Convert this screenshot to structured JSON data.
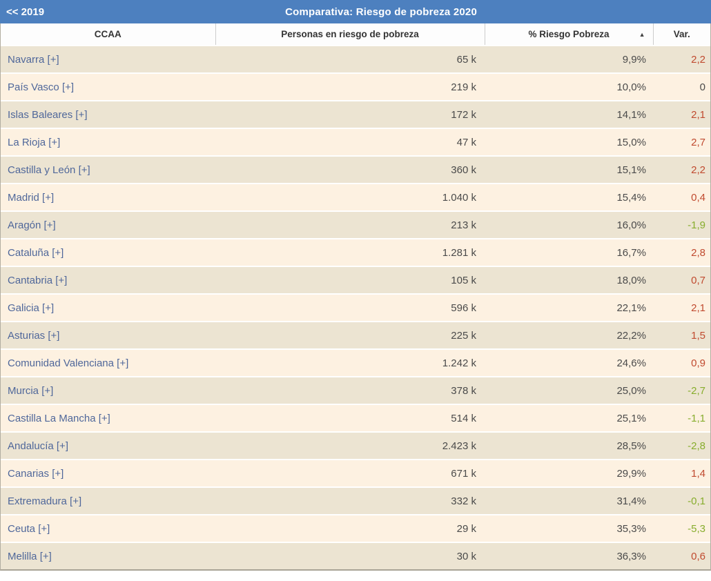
{
  "topbar": {
    "back_label": "<< 2019",
    "title": "Comparativa: Riesgo de pobreza 2020"
  },
  "table": {
    "columns": {
      "ccaa": "CCAA",
      "personas": "Personas en riesgo de pobreza",
      "pct": "% Riesgo Pobreza",
      "var": "Var."
    },
    "sort_icon": "▲",
    "sorted_column": "% Riesgo Pobreza",
    "sort_direction": "ascending",
    "plus_suffix": "[+]",
    "rows": [
      {
        "name": "Navarra",
        "personas": "65 k",
        "pct": "9,9%",
        "var": "2,2",
        "var_state": "up"
      },
      {
        "name": "País Vasco",
        "personas": "219 k",
        "pct": "10,0%",
        "var": "0",
        "var_state": "zero"
      },
      {
        "name": "Islas Baleares",
        "personas": "172 k",
        "pct": "14,1%",
        "var": "2,1",
        "var_state": "up"
      },
      {
        "name": "La Rioja",
        "personas": "47 k",
        "pct": "15,0%",
        "var": "2,7",
        "var_state": "up"
      },
      {
        "name": "Castilla y León",
        "personas": "360 k",
        "pct": "15,1%",
        "var": "2,2",
        "var_state": "up"
      },
      {
        "name": "Madrid",
        "personas": "1.040 k",
        "pct": "15,4%",
        "var": "0,4",
        "var_state": "up"
      },
      {
        "name": "Aragón",
        "personas": "213 k",
        "pct": "16,0%",
        "var": "-1,9",
        "var_state": "down"
      },
      {
        "name": "Cataluña",
        "personas": "1.281 k",
        "pct": "16,7%",
        "var": "2,8",
        "var_state": "up"
      },
      {
        "name": "Cantabria",
        "personas": "105 k",
        "pct": "18,0%",
        "var": "0,7",
        "var_state": "up"
      },
      {
        "name": "Galicia",
        "personas": "596 k",
        "pct": "22,1%",
        "var": "2,1",
        "var_state": "up"
      },
      {
        "name": "Asturias",
        "personas": "225 k",
        "pct": "22,2%",
        "var": "1,5",
        "var_state": "up"
      },
      {
        "name": "Comunidad Valenciana",
        "personas": "1.242 k",
        "pct": "24,6%",
        "var": "0,9",
        "var_state": "up"
      },
      {
        "name": "Murcia",
        "personas": "378 k",
        "pct": "25,0%",
        "var": "-2,7",
        "var_state": "down"
      },
      {
        "name": "Castilla La Mancha",
        "personas": "514 k",
        "pct": "25,1%",
        "var": "-1,1",
        "var_state": "down"
      },
      {
        "name": "Andalucía",
        "personas": "2.423 k",
        "pct": "28,5%",
        "var": "-2,8",
        "var_state": "down"
      },
      {
        "name": "Canarias",
        "personas": "671 k",
        "pct": "29,9%",
        "var": "1,4",
        "var_state": "up"
      },
      {
        "name": "Extremadura",
        "personas": "332 k",
        "pct": "31,4%",
        "var": "-0,1",
        "var_state": "down"
      },
      {
        "name": "Ceuta",
        "personas": "29 k",
        "pct": "35,3%",
        "var": "-5,3",
        "var_state": "down"
      },
      {
        "name": "Melilla",
        "personas": "30 k",
        "pct": "36,3%",
        "var": "0,6",
        "var_state": "up"
      }
    ]
  },
  "colors": {
    "topbar_blue": "#4d80bf",
    "row_odd_bg": "#ece4d2",
    "row_even_bg": "#fdf1e1",
    "link_blue": "#4f679a",
    "var_up_red": "#c04a2f",
    "var_down_green": "#87ad2d",
    "number_gray": "#4a4a4a"
  }
}
